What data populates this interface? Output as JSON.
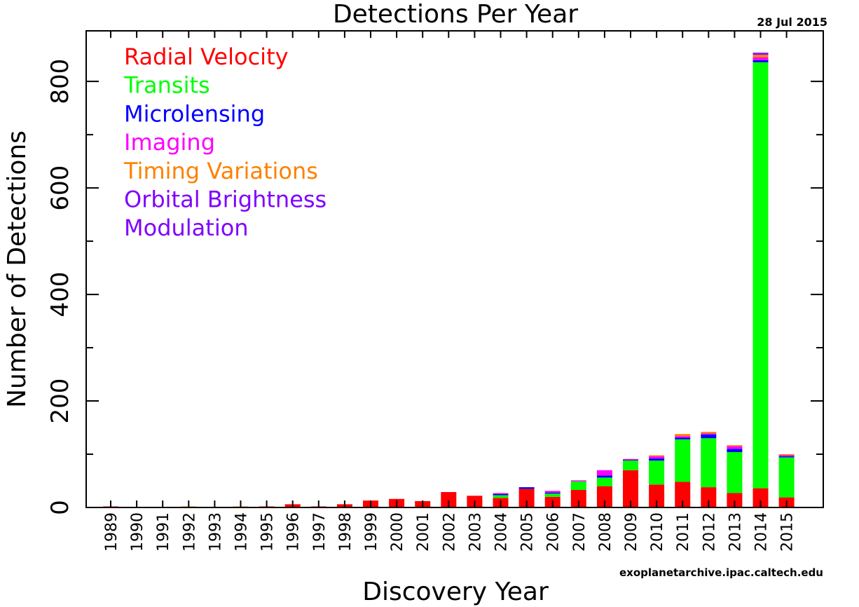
{
  "chart_data": {
    "type": "bar",
    "stacked": true,
    "title": "Detections Per Year",
    "date": "28 Jul 2015",
    "credit": "exoplanetarchive.ipac.caltech.edu",
    "xlabel": "Discovery Year",
    "ylabel": "Number of Detections",
    "ylim": [
      0,
      895
    ],
    "yticks": [
      0,
      200,
      400,
      600,
      800
    ],
    "yminor_step": 100,
    "grid": false,
    "legend_position": "top-left",
    "categories": [
      "1989",
      "1990",
      "1991",
      "1992",
      "1993",
      "1994",
      "1995",
      "1996",
      "1997",
      "1998",
      "1999",
      "2000",
      "2001",
      "2002",
      "2003",
      "2004",
      "2005",
      "2006",
      "2007",
      "2008",
      "2009",
      "2010",
      "2011",
      "2012",
      "2013",
      "2014",
      "2015"
    ],
    "series": [
      {
        "name": "Radial Velocity",
        "color": "#ff0000",
        "values": [
          1,
          0,
          0,
          0,
          0,
          0,
          1,
          6,
          1,
          6,
          13,
          16,
          12,
          29,
          22,
          18,
          35,
          20,
          33,
          40,
          70,
          43,
          48,
          38,
          27,
          36,
          19
        ]
      },
      {
        "name": "Transits",
        "color": "#00ff00",
        "values": [
          0,
          0,
          0,
          0,
          0,
          0,
          0,
          0,
          0,
          0,
          0,
          0,
          0,
          0,
          0,
          5,
          0,
          6,
          16,
          16,
          18,
          45,
          80,
          92,
          77,
          800,
          75
        ]
      },
      {
        "name": "Microlensing",
        "color": "#0000ff",
        "values": [
          0,
          0,
          0,
          0,
          0,
          0,
          0,
          0,
          0,
          0,
          0,
          0,
          0,
          0,
          0,
          2,
          3,
          2,
          0,
          4,
          1,
          4,
          3,
          7,
          6,
          4,
          2
        ]
      },
      {
        "name": "Imaging",
        "color": "#ff00ff",
        "values": [
          0,
          0,
          0,
          0,
          0,
          0,
          0,
          0,
          0,
          0,
          0,
          0,
          0,
          0,
          0,
          2,
          0,
          3,
          1,
          10,
          2,
          4,
          3,
          2,
          5,
          5,
          2
        ]
      },
      {
        "name": "Timing Variations",
        "color": "#ff8000",
        "values": [
          0,
          0,
          0,
          2,
          0,
          1,
          0,
          0,
          0,
          0,
          0,
          0,
          0,
          0,
          0,
          0,
          0,
          0,
          0,
          0,
          0,
          2,
          4,
          3,
          1,
          5,
          1
        ]
      },
      {
        "name": "Orbital Brightness",
        "color": "#8000ff",
        "values": [
          0,
          0,
          0,
          0,
          0,
          0,
          0,
          0,
          0,
          0,
          0,
          0,
          0,
          0,
          0,
          0,
          0,
          0,
          0,
          0,
          0,
          0,
          0,
          0,
          0,
          2,
          0
        ]
      },
      {
        "name": "Modulation",
        "color": "#8000ff",
        "values": [
          0,
          0,
          0,
          0,
          0,
          0,
          0,
          0,
          0,
          0,
          0,
          0,
          0,
          0,
          0,
          0,
          0,
          0,
          0,
          0,
          0,
          0,
          0,
          0,
          0,
          1,
          0
        ]
      }
    ]
  }
}
